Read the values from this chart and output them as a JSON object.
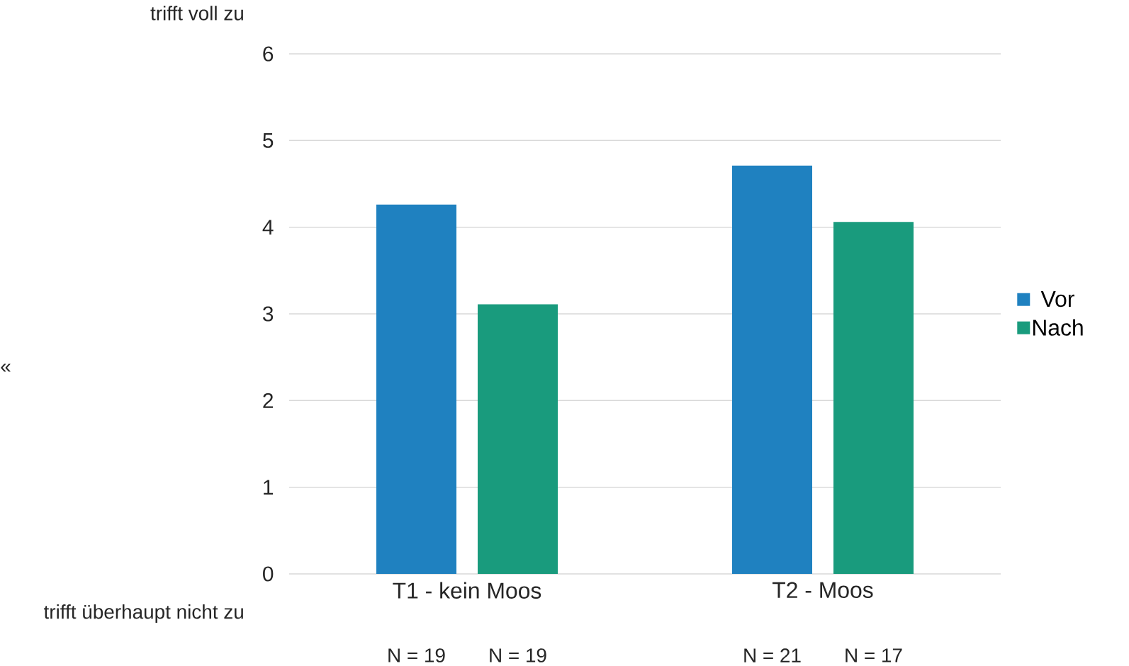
{
  "chart_data": {
    "type": "bar",
    "categories": [
      "T1 - kein Moos",
      "T2 - Moos"
    ],
    "series": [
      {
        "name": "Vor",
        "color": "#1f81c0",
        "values": [
          4.26,
          4.71
        ]
      },
      {
        "name": "Nach",
        "color": "#199b7d",
        "values": [
          3.11,
          4.06
        ]
      }
    ],
    "ylim": [
      0,
      6
    ],
    "yticks": [
      0,
      1,
      2,
      3,
      4,
      5,
      6
    ],
    "grid": "y",
    "legend": "right",
    "annotations": [
      "trifft voll zu",
      "trifft überhaupt nicht zu",
      "«",
      "N = 19",
      "N = 19",
      "N = 21",
      "N = 17"
    ]
  }
}
